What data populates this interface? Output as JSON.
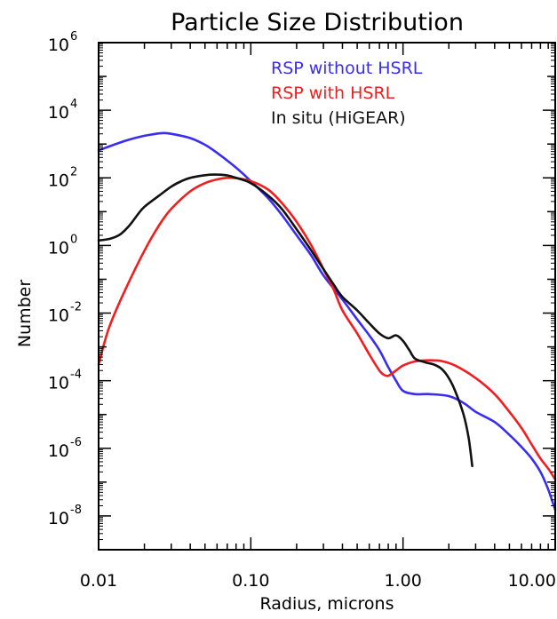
{
  "chart_data": {
    "type": "line",
    "title": "Particle Size Distribution",
    "xlabel": "Radius, microns",
    "ylabel": "Number",
    "x_scale": "log",
    "y_scale": "log",
    "xlim": [
      0.01,
      10.0
    ],
    "ylim": [
      1e-09,
      1000000.0
    ],
    "x_ticks": [
      "0.01",
      "0.10",
      "1.00",
      "10.00"
    ],
    "y_ticks": [
      {
        "base": "10",
        "exp": "6"
      },
      {
        "base": "10",
        "exp": "4"
      },
      {
        "base": "10",
        "exp": "2"
      },
      {
        "base": "10",
        "exp": "0"
      },
      {
        "base": "10",
        "exp": "-2"
      },
      {
        "base": "10",
        "exp": "-4"
      },
      {
        "base": "10",
        "exp": "-6"
      },
      {
        "base": "10",
        "exp": "-8"
      }
    ],
    "legend_position": "top-right",
    "series": [
      {
        "name": "RSP without HSRL",
        "color": "#3a2df0",
        "points": [
          [
            0.01,
            650
          ],
          [
            0.015,
            1250
          ],
          [
            0.02,
            1750
          ],
          [
            0.026,
            2100
          ],
          [
            0.03,
            2000
          ],
          [
            0.04,
            1500
          ],
          [
            0.05,
            950
          ],
          [
            0.06,
            550
          ],
          [
            0.08,
            200
          ],
          [
            0.1,
            80
          ],
          [
            0.13,
            25
          ],
          [
            0.16,
            8
          ],
          [
            0.2,
            2
          ],
          [
            0.25,
            0.5
          ],
          [
            0.3,
            0.13
          ],
          [
            0.4,
            0.025
          ],
          [
            0.5,
            0.0065
          ],
          [
            0.6,
            0.0022
          ],
          [
            0.7,
            0.0008
          ],
          [
            0.8,
            0.00025
          ],
          [
            0.9,
            0.0001
          ],
          [
            1.0,
            5e-05
          ],
          [
            1.2,
            4e-05
          ],
          [
            1.5,
            4e-05
          ],
          [
            2.0,
            3.5e-05
          ],
          [
            2.5,
            2.2e-05
          ],
          [
            3.0,
            1.2e-05
          ],
          [
            4.0,
            6e-06
          ],
          [
            5.0,
            2.5e-06
          ],
          [
            6.0,
            1.1e-06
          ],
          [
            7.0,
            5e-07
          ],
          [
            8.0,
            2e-07
          ],
          [
            9.0,
            6e-08
          ],
          [
            10.0,
            1.5e-08
          ]
        ]
      },
      {
        "name": "RSP with HSRL",
        "color": "#f01e1e",
        "points": [
          [
            0.01,
            0.0003
          ],
          [
            0.011,
            0.0015
          ],
          [
            0.012,
            0.005
          ],
          [
            0.015,
            0.05
          ],
          [
            0.02,
            0.7
          ],
          [
            0.025,
            4
          ],
          [
            0.03,
            12
          ],
          [
            0.04,
            40
          ],
          [
            0.05,
            70
          ],
          [
            0.06,
            90
          ],
          [
            0.07,
            100
          ],
          [
            0.08,
            98
          ],
          [
            0.1,
            80
          ],
          [
            0.13,
            45
          ],
          [
            0.16,
            18
          ],
          [
            0.2,
            5
          ],
          [
            0.25,
            1
          ],
          [
            0.3,
            0.2
          ],
          [
            0.35,
            0.05
          ],
          [
            0.4,
            0.012
          ],
          [
            0.5,
            0.0025
          ],
          [
            0.6,
            0.0006
          ],
          [
            0.7,
            0.0002
          ],
          [
            0.75,
            0.00015
          ],
          [
            0.8,
            0.00014
          ],
          [
            0.9,
            0.0002
          ],
          [
            1.0,
            0.00028
          ],
          [
            1.2,
            0.00037
          ],
          [
            1.5,
            0.0004
          ],
          [
            1.8,
            0.00038
          ],
          [
            2.2,
            0.00028
          ],
          [
            3.0,
            0.00012
          ],
          [
            4.0,
            4e-05
          ],
          [
            5.0,
            1.2e-05
          ],
          [
            6.0,
            4e-06
          ],
          [
            7.0,
            1.3e-06
          ],
          [
            8.0,
            5e-07
          ],
          [
            9.0,
            2.5e-07
          ],
          [
            10.0,
            1.2e-07
          ]
        ]
      },
      {
        "name": "In situ (HiGEAR)",
        "color": "#111111",
        "points": [
          [
            0.01,
            1.4
          ],
          [
            0.012,
            1.6
          ],
          [
            0.014,
            2.2
          ],
          [
            0.016,
            4
          ],
          [
            0.018,
            8
          ],
          [
            0.02,
            14
          ],
          [
            0.025,
            30
          ],
          [
            0.03,
            55
          ],
          [
            0.035,
            80
          ],
          [
            0.04,
            100
          ],
          [
            0.05,
            120
          ],
          [
            0.06,
            125
          ],
          [
            0.07,
            118
          ],
          [
            0.08,
            100
          ],
          [
            0.1,
            70
          ],
          [
            0.13,
            30
          ],
          [
            0.16,
            12
          ],
          [
            0.2,
            3
          ],
          [
            0.25,
            0.7
          ],
          [
            0.3,
            0.2
          ],
          [
            0.35,
            0.07
          ],
          [
            0.4,
            0.03
          ],
          [
            0.5,
            0.012
          ],
          [
            0.6,
            0.005
          ],
          [
            0.7,
            0.0025
          ],
          [
            0.8,
            0.0018
          ],
          [
            0.9,
            0.0022
          ],
          [
            1.0,
            0.0015
          ],
          [
            1.1,
            0.0008
          ],
          [
            1.2,
            0.00045
          ],
          [
            1.4,
            0.00035
          ],
          [
            1.6,
            0.0003
          ],
          [
            1.8,
            0.00022
          ],
          [
            2.0,
            0.00012
          ],
          [
            2.2,
            5e-05
          ],
          [
            2.5,
            1e-05
          ],
          [
            2.7,
            2e-06
          ],
          [
            2.85,
            3e-07
          ]
        ]
      }
    ]
  }
}
